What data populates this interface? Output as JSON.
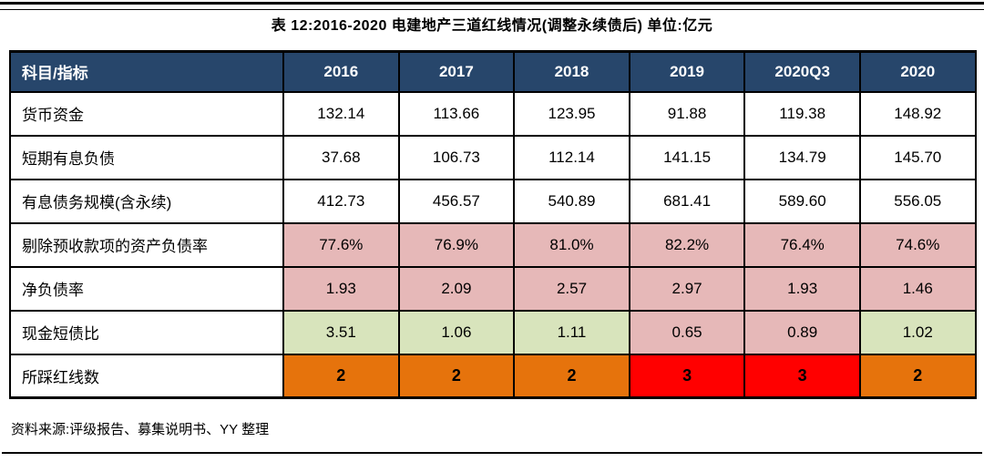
{
  "title": "表 12:2016-2020 电建地产三道红线情况(调整永续债后) 单位:亿元",
  "source_note": "资料来源:评级报告、募集说明书、YY 整理",
  "colors": {
    "header_bg": "#27466B",
    "header_text": "#FFFFFF",
    "none": "#FFFFFF",
    "pink": "#E6B8B8",
    "green": "#D8E4BC",
    "orange": "#E6730C",
    "red": "#FF0000",
    "border": "#000000"
  },
  "chart_data": {
    "type": "table",
    "title": "表 12:2016-2020 电建地产三道红线情况(调整永续债后) 单位:亿元",
    "columns": [
      "科目/指标",
      "2016",
      "2017",
      "2018",
      "2019",
      "2020Q3",
      "2020"
    ],
    "rows": [
      {
        "label": "货币资金",
        "values": [
          "132.14",
          "113.66",
          "123.95",
          "91.88",
          "119.38",
          "148.92"
        ],
        "colors": [
          "none",
          "none",
          "none",
          "none",
          "none",
          "none"
        ],
        "bold": false
      },
      {
        "label": "短期有息负债",
        "values": [
          "37.68",
          "106.73",
          "112.14",
          "141.15",
          "134.79",
          "145.70"
        ],
        "colors": [
          "none",
          "none",
          "none",
          "none",
          "none",
          "none"
        ],
        "bold": false
      },
      {
        "label": "有息债务规模(含永续)",
        "values": [
          "412.73",
          "456.57",
          "540.89",
          "681.41",
          "589.60",
          "556.05"
        ],
        "colors": [
          "none",
          "none",
          "none",
          "none",
          "none",
          "none"
        ],
        "bold": false
      },
      {
        "label": "剔除预收款项的资产负债率",
        "values": [
          "77.6%",
          "76.9%",
          "81.0%",
          "82.2%",
          "76.4%",
          "74.6%"
        ],
        "colors": [
          "pink",
          "pink",
          "pink",
          "pink",
          "pink",
          "pink"
        ],
        "bold": false
      },
      {
        "label": "净负债率",
        "values": [
          "1.93",
          "2.09",
          "2.57",
          "2.97",
          "1.93",
          "1.46"
        ],
        "colors": [
          "pink",
          "pink",
          "pink",
          "pink",
          "pink",
          "pink"
        ],
        "bold": false
      },
      {
        "label": "现金短债比",
        "values": [
          "3.51",
          "1.06",
          "1.11",
          "0.65",
          "0.89",
          "1.02"
        ],
        "colors": [
          "green",
          "green",
          "green",
          "pink",
          "pink",
          "green"
        ],
        "bold": false
      },
      {
        "label": "所踩红线数",
        "values": [
          "2",
          "2",
          "2",
          "3",
          "3",
          "2"
        ],
        "colors": [
          "orange",
          "orange",
          "orange",
          "red",
          "red",
          "orange"
        ],
        "bold": true
      }
    ]
  }
}
